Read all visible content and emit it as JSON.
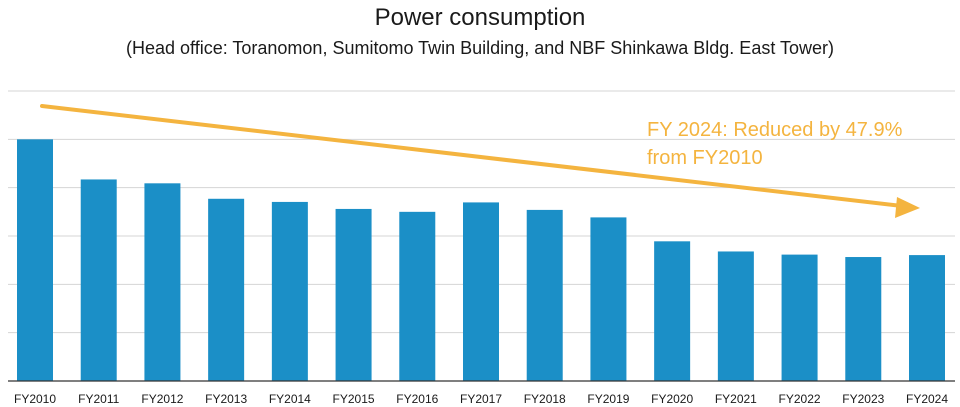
{
  "chart_data": {
    "type": "bar",
    "title": "Power consumption",
    "subtitle": "(Head office: Toranomon, Sumitomo Twin Building, and NBF Shinkawa Bldg. East Tower)",
    "categories": [
      "FY2010",
      "FY2011",
      "FY2012",
      "FY2013",
      "FY2014",
      "FY2015",
      "FY2016",
      "FY2017",
      "FY2018",
      "FY2019",
      "FY2020",
      "FY2021",
      "FY2022",
      "FY2023",
      "FY2024"
    ],
    "values": [
      100,
      83.4,
      81.8,
      75.4,
      74.1,
      71.2,
      70.0,
      73.9,
      70.8,
      67.7,
      57.8,
      53.6,
      52.3,
      51.3,
      52.1
    ],
    "ylim": [
      0,
      120
    ],
    "grid": true,
    "bar_color": "#1b8fc7",
    "annotation": {
      "lines": [
        "FY 2024: Reduced by 47.9%",
        "from FY2010"
      ],
      "color": "#f4b43f"
    },
    "trend_arrow_color": "#f4b43f"
  }
}
